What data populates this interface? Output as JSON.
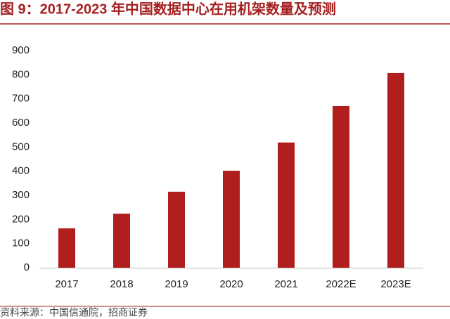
{
  "chart_data": {
    "type": "bar",
    "title": "图 9：2017-2023 年中国数据中心在用机架数量及预测",
    "source": "资料来源：中国信通院，招商证券",
    "categories": [
      "2017",
      "2018",
      "2019",
      "2020",
      "2021",
      "2022E",
      "2023E"
    ],
    "values": [
      163,
      224,
      315,
      402,
      519,
      670,
      807
    ],
    "color": "#b01e1e",
    "ylim": [
      0,
      900
    ],
    "yticks": [
      0,
      100,
      200,
      300,
      400,
      500,
      600,
      700,
      800,
      900
    ],
    "grid": false
  }
}
